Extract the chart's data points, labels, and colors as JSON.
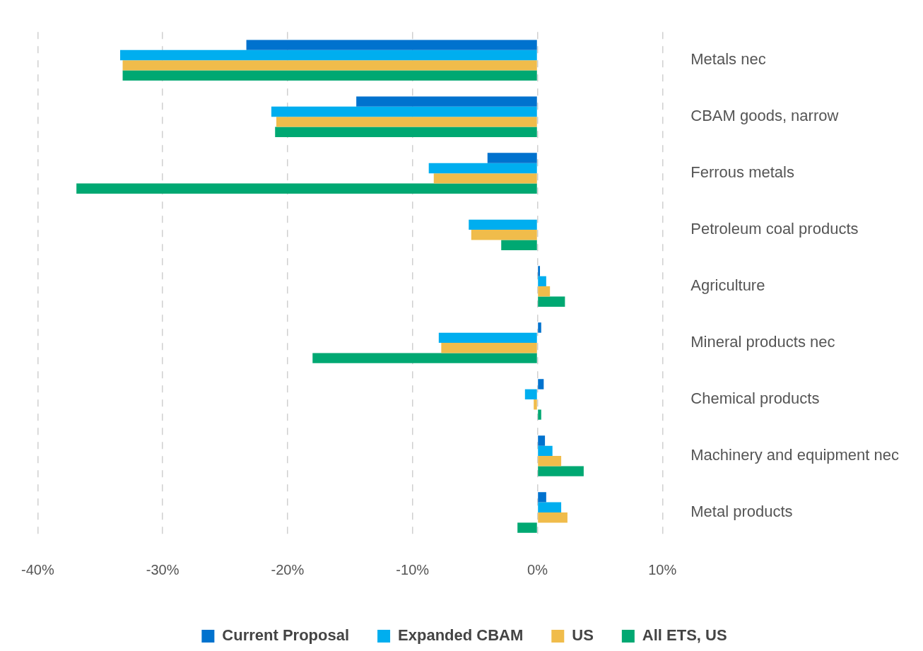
{
  "chart_data": {
    "type": "bar",
    "orientation": "horizontal",
    "categories": [
      "Metals nec",
      "CBAM goods, narrow",
      "Ferrous metals",
      "Petroleum coal products",
      "Agriculture",
      "Mineral products nec",
      "Chemical products",
      "Machinery and equipment nec",
      "Metal products"
    ],
    "series": [
      {
        "name": "Current Proposal",
        "color": "#0072ce",
        "values": [
          -23.3,
          -14.5,
          -4.0,
          null,
          0.2,
          0.3,
          0.5,
          0.6,
          0.7
        ]
      },
      {
        "name": "Expanded CBAM",
        "color": "#00aeef",
        "values": [
          -33.4,
          -21.3,
          -8.7,
          -5.5,
          0.7,
          -7.9,
          -1.0,
          1.2,
          1.9
        ]
      },
      {
        "name": "US",
        "color": "#f0bc4b",
        "values": [
          -33.2,
          -20.9,
          -8.3,
          -5.3,
          1.0,
          -7.7,
          -0.3,
          1.9,
          2.4
        ]
      },
      {
        "name": "All ETS, US",
        "color": "#00a872",
        "values": [
          -33.2,
          -21.0,
          -36.9,
          -2.9,
          2.2,
          -18.0,
          0.3,
          3.7,
          -1.6
        ]
      }
    ],
    "xlim": [
      -40,
      10
    ],
    "xticks": [
      {
        "value": -40,
        "label": "-40%"
      },
      {
        "value": -30,
        "label": "-30%"
      },
      {
        "value": -20,
        "label": "-20%"
      },
      {
        "value": -10,
        "label": "-10%"
      },
      {
        "value": 0,
        "label": "0%"
      },
      {
        "value": 10,
        "label": "10%"
      }
    ],
    "grid": "x",
    "legend": "bottom"
  }
}
